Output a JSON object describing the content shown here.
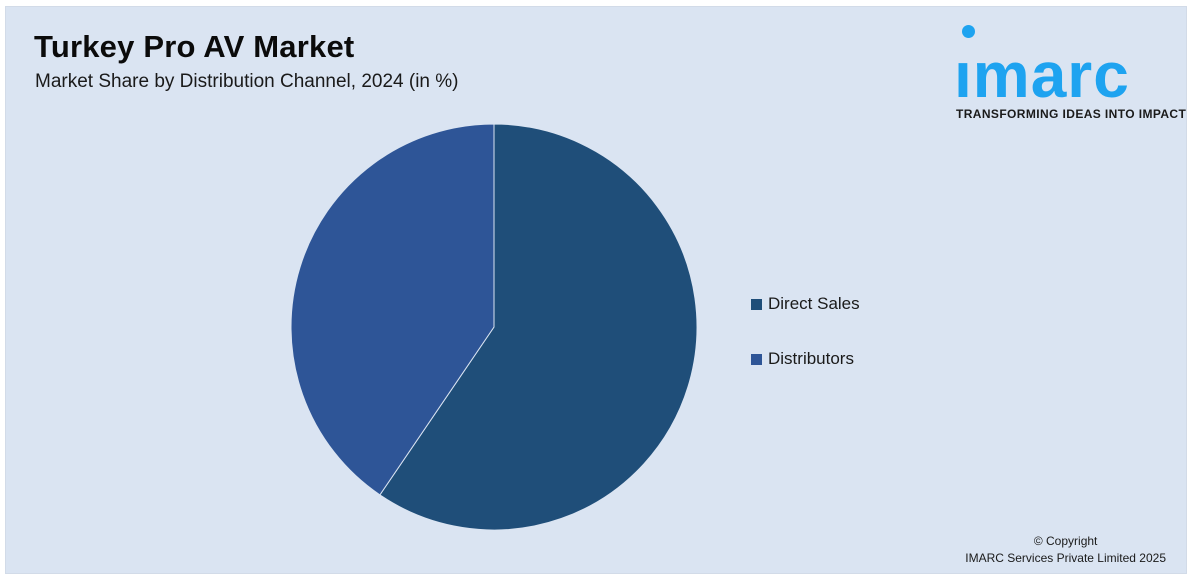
{
  "header": {
    "title": "Turkey Pro AV Market",
    "subtitle": "Market Share by Distribution Channel, 2024 (in %)"
  },
  "logo": {
    "brand": "ımarc",
    "tagline": "TRANSFORMING IDEAS INTO IMPACT",
    "color": "#1ea3f0"
  },
  "footer": {
    "line1": "© Copyright",
    "line2": "IMARC Services Private Limited 2025"
  },
  "chart_data": {
    "type": "pie",
    "title": "Turkey Pro AV Market",
    "subtitle": "Market Share by Distribution Channel, 2024 (in %)",
    "categories": [
      "Direct Sales",
      "Distributors"
    ],
    "values": [
      59.5,
      40.5
    ],
    "colors": [
      "#1f4e79",
      "#2e5597"
    ],
    "legend_position": "right",
    "start_angle": "12 o'clock",
    "direction": "clockwise"
  }
}
